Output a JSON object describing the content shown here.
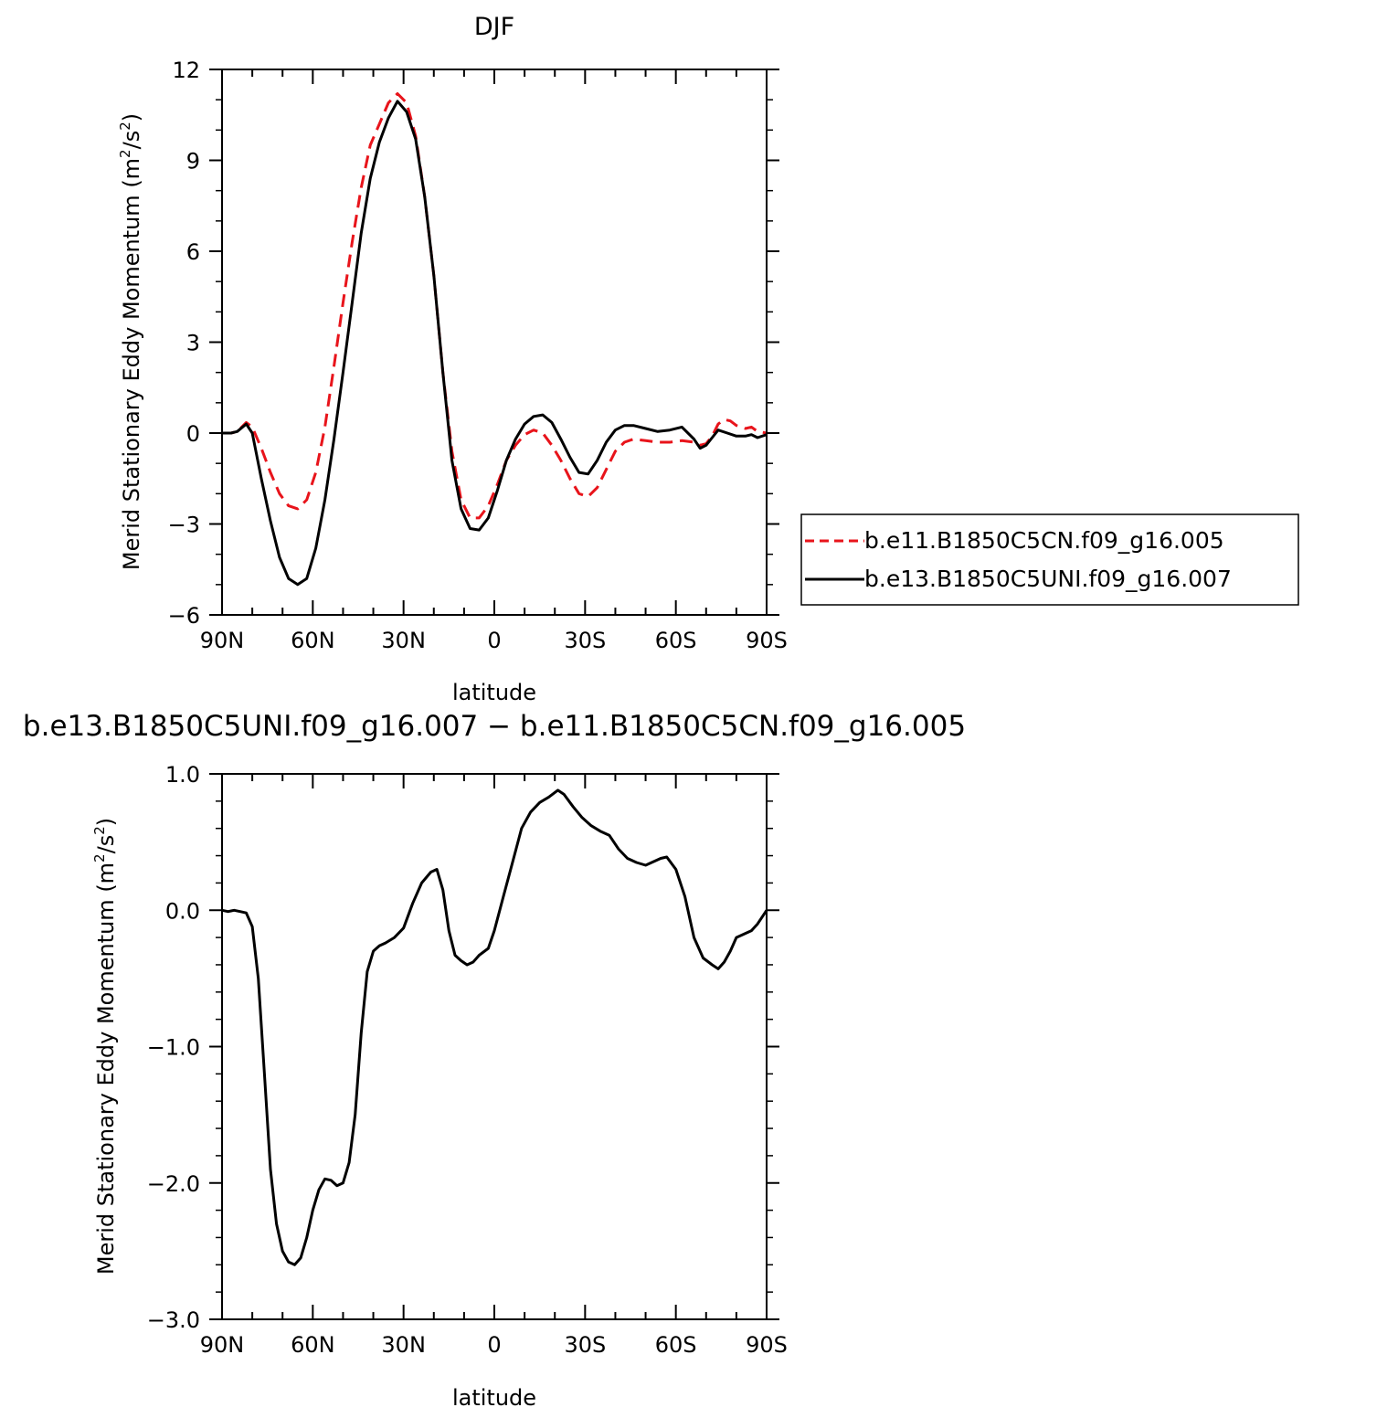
{
  "chart_data": [
    {
      "type": "line",
      "title": "DJF",
      "xlabel": "latitude",
      "ylabel": "Merid Stationary Eddy Momentum (m²/s²)",
      "ylabel_parts": [
        "Merid Stationary Eddy Momentum (m",
        "2",
        "/s",
        "2",
        ")"
      ],
      "x_range": [
        90,
        -90
      ],
      "x_ticks": [
        90,
        60,
        30,
        0,
        -30,
        -60,
        -90
      ],
      "x_tick_labels": [
        "90N",
        "60N",
        "30N",
        "0",
        "30S",
        "60S",
        "90S"
      ],
      "ylim": [
        -6,
        12
      ],
      "y_ticks": [
        -6,
        -3,
        0,
        3,
        6,
        9,
        12
      ],
      "y_tick_labels": [
        "−6",
        "−3",
        "0",
        "3",
        "6",
        "9",
        "12"
      ],
      "legend": "right",
      "series": [
        {
          "name": "b.e11.B1850C5CN.f09_g16.005",
          "color": "#e8141b",
          "dash": "dashed",
          "points": [
            [
              90,
              0
            ],
            [
              87,
              0
            ],
            [
              85,
              0.05
            ],
            [
              82,
              0.35
            ],
            [
              80,
              0.2
            ],
            [
              77,
              -0.5
            ],
            [
              74,
              -1.3
            ],
            [
              71,
              -2.0
            ],
            [
              68,
              -2.4
            ],
            [
              65,
              -2.5
            ],
            [
              62,
              -2.2
            ],
            [
              59,
              -1.3
            ],
            [
              56,
              0.2
            ],
            [
              53,
              2.2
            ],
            [
              50,
              4.3
            ],
            [
              47,
              6.3
            ],
            [
              44,
              8.1
            ],
            [
              41,
              9.5
            ],
            [
              38,
              10.2
            ],
            [
              35,
              10.9
            ],
            [
              32,
              11.2
            ],
            [
              29,
              10.9
            ],
            [
              26,
              9.8
            ],
            [
              23,
              7.8
            ],
            [
              20,
              5.2
            ],
            [
              17,
              2.0
            ],
            [
              14,
              -0.6
            ],
            [
              11,
              -2.2
            ],
            [
              8,
              -2.8
            ],
            [
              5,
              -2.8
            ],
            [
              2,
              -2.4
            ],
            [
              -1,
              -1.7
            ],
            [
              -4,
              -0.9
            ],
            [
              -7,
              -0.4
            ],
            [
              -10,
              -0.05
            ],
            [
              -13,
              0.1
            ],
            [
              -16,
              0.0
            ],
            [
              -19,
              -0.4
            ],
            [
              -22,
              -0.9
            ],
            [
              -25,
              -1.5
            ],
            [
              -28,
              -2.0
            ],
            [
              -31,
              -2.1
            ],
            [
              -34,
              -1.8
            ],
            [
              -37,
              -1.2
            ],
            [
              -40,
              -0.6
            ],
            [
              -43,
              -0.3
            ],
            [
              -46,
              -0.2
            ],
            [
              -50,
              -0.25
            ],
            [
              -54,
              -0.3
            ],
            [
              -58,
              -0.3
            ],
            [
              -62,
              -0.25
            ],
            [
              -66,
              -0.3
            ],
            [
              -68,
              -0.4
            ],
            [
              -70,
              -0.35
            ],
            [
              -72,
              -0.1
            ],
            [
              -74,
              0.3
            ],
            [
              -76,
              0.45
            ],
            [
              -78,
              0.4
            ],
            [
              -80,
              0.25
            ],
            [
              -83,
              0.15
            ],
            [
              -85,
              0.2
            ],
            [
              -87,
              0.05
            ],
            [
              -90,
              0.0
            ]
          ]
        },
        {
          "name": "b.e13.B1850C5UNI.f09_g16.007",
          "color": "#000000",
          "dash": "solid",
          "points": [
            [
              90,
              0
            ],
            [
              87,
              0
            ],
            [
              85,
              0.05
            ],
            [
              82,
              0.3
            ],
            [
              80,
              0.0
            ],
            [
              77,
              -1.5
            ],
            [
              74,
              -2.9
            ],
            [
              71,
              -4.1
            ],
            [
              68,
              -4.8
            ],
            [
              65,
              -5.0
            ],
            [
              62,
              -4.8
            ],
            [
              59,
              -3.8
            ],
            [
              56,
              -2.2
            ],
            [
              53,
              -0.2
            ],
            [
              50,
              2.0
            ],
            [
              47,
              4.3
            ],
            [
              44,
              6.6
            ],
            [
              41,
              8.4
            ],
            [
              38,
              9.6
            ],
            [
              35,
              10.4
            ],
            [
              32,
              10.95
            ],
            [
              29,
              10.6
            ],
            [
              26,
              9.7
            ],
            [
              23,
              7.8
            ],
            [
              20,
              5.2
            ],
            [
              17,
              2.0
            ],
            [
              14,
              -0.9
            ],
            [
              11,
              -2.5
            ],
            [
              8,
              -3.15
            ],
            [
              5,
              -3.2
            ],
            [
              2,
              -2.8
            ],
            [
              -1,
              -1.9
            ],
            [
              -4,
              -0.9
            ],
            [
              -7,
              -0.2
            ],
            [
              -10,
              0.3
            ],
            [
              -13,
              0.55
            ],
            [
              -16,
              0.6
            ],
            [
              -19,
              0.35
            ],
            [
              -22,
              -0.2
            ],
            [
              -25,
              -0.8
            ],
            [
              -28,
              -1.3
            ],
            [
              -31,
              -1.35
            ],
            [
              -34,
              -0.9
            ],
            [
              -37,
              -0.3
            ],
            [
              -40,
              0.1
            ],
            [
              -43,
              0.25
            ],
            [
              -46,
              0.25
            ],
            [
              -50,
              0.15
            ],
            [
              -54,
              0.05
            ],
            [
              -58,
              0.1
            ],
            [
              -62,
              0.2
            ],
            [
              -66,
              -0.2
            ],
            [
              -68,
              -0.5
            ],
            [
              -70,
              -0.4
            ],
            [
              -72,
              -0.15
            ],
            [
              -74,
              0.1
            ],
            [
              -77,
              0.0
            ],
            [
              -80,
              -0.1
            ],
            [
              -83,
              -0.1
            ],
            [
              -85,
              -0.05
            ],
            [
              -87,
              -0.15
            ],
            [
              -90,
              -0.05
            ]
          ]
        }
      ]
    },
    {
      "type": "line",
      "title": "b.e13.B1850C5UNI.f09_g16.007 − b.e11.B1850C5CN.f09_g16.005",
      "xlabel": "latitude",
      "ylabel": "Merid Stationary Eddy Momentum (m²/s²)",
      "ylabel_parts": [
        "Merid Stationary Eddy Momentum (m",
        "2",
        "/s",
        "2",
        ")"
      ],
      "x_range": [
        90,
        -90
      ],
      "x_ticks": [
        90,
        60,
        30,
        0,
        -30,
        -60,
        -90
      ],
      "x_tick_labels": [
        "90N",
        "60N",
        "30N",
        "0",
        "30S",
        "60S",
        "90S"
      ],
      "ylim": [
        -3,
        1
      ],
      "y_ticks": [
        -3,
        -2,
        -1,
        0,
        1
      ],
      "y_tick_labels": [
        "−3.0",
        "−2.0",
        "−1.0",
        "0.0",
        "1.0"
      ],
      "series": [
        {
          "color": "#000000",
          "dash": "solid",
          "points": [
            [
              90,
              0
            ],
            [
              88,
              -0.01
            ],
            [
              86,
              0.0
            ],
            [
              84,
              -0.01
            ],
            [
              82,
              -0.02
            ],
            [
              80,
              -0.12
            ],
            [
              78,
              -0.5
            ],
            [
              76,
              -1.2
            ],
            [
              74,
              -1.9
            ],
            [
              72,
              -2.3
            ],
            [
              70,
              -2.5
            ],
            [
              68,
              -2.58
            ],
            [
              66,
              -2.6
            ],
            [
              64,
              -2.55
            ],
            [
              62,
              -2.4
            ],
            [
              60,
              -2.2
            ],
            [
              58,
              -2.05
            ],
            [
              56,
              -1.97
            ],
            [
              54,
              -1.98
            ],
            [
              52,
              -2.02
            ],
            [
              50,
              -2.0
            ],
            [
              48,
              -1.85
            ],
            [
              46,
              -1.5
            ],
            [
              44,
              -0.9
            ],
            [
              42,
              -0.45
            ],
            [
              40,
              -0.3
            ],
            [
              38,
              -0.26
            ],
            [
              36,
              -0.24
            ],
            [
              33,
              -0.2
            ],
            [
              30,
              -0.13
            ],
            [
              27,
              0.05
            ],
            [
              24,
              0.2
            ],
            [
              21,
              0.28
            ],
            [
              19,
              0.3
            ],
            [
              17,
              0.15
            ],
            [
              15,
              -0.15
            ],
            [
              13,
              -0.33
            ],
            [
              11,
              -0.37
            ],
            [
              9,
              -0.4
            ],
            [
              7,
              -0.38
            ],
            [
              5,
              -0.33
            ],
            [
              2,
              -0.28
            ],
            [
              0,
              -0.15
            ],
            [
              -3,
              0.1
            ],
            [
              -6,
              0.35
            ],
            [
              -9,
              0.6
            ],
            [
              -12,
              0.72
            ],
            [
              -15,
              0.79
            ],
            [
              -18,
              0.83
            ],
            [
              -21,
              0.88
            ],
            [
              -23,
              0.85
            ],
            [
              -26,
              0.76
            ],
            [
              -29,
              0.68
            ],
            [
              -32,
              0.62
            ],
            [
              -35,
              0.58
            ],
            [
              -38,
              0.55
            ],
            [
              -41,
              0.45
            ],
            [
              -44,
              0.38
            ],
            [
              -47,
              0.35
            ],
            [
              -50,
              0.33
            ],
            [
              -52,
              0.35
            ],
            [
              -55,
              0.38
            ],
            [
              -57,
              0.39
            ],
            [
              -60,
              0.3
            ],
            [
              -63,
              0.1
            ],
            [
              -66,
              -0.2
            ],
            [
              -69,
              -0.35
            ],
            [
              -72,
              -0.4
            ],
            [
              -74,
              -0.43
            ],
            [
              -76,
              -0.38
            ],
            [
              -78,
              -0.3
            ],
            [
              -80,
              -0.2
            ],
            [
              -83,
              -0.17
            ],
            [
              -85,
              -0.15
            ],
            [
              -87,
              -0.1
            ],
            [
              -90,
              0.0
            ]
          ]
        }
      ]
    }
  ]
}
